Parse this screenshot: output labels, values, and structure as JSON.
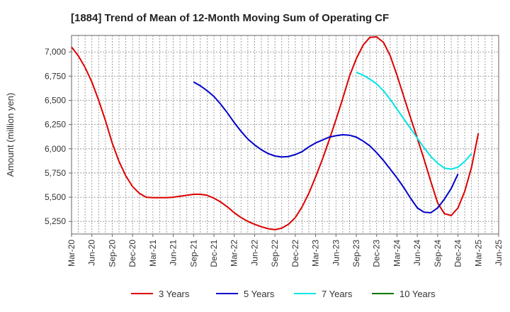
{
  "chart_data": {
    "type": "line",
    "title": "[1884]  Trend of Mean of 12-Month Moving Sum of Operating CF",
    "xlabel": "",
    "ylabel": "Amount (million yen)",
    "ylim": [
      5120,
      7170
    ],
    "yticks": [
      5250,
      5500,
      5750,
      6000,
      6250,
      6500,
      6750,
      7000
    ],
    "ytick_labels": [
      "5,250",
      "5,500",
      "5,750",
      "6,000",
      "6,250",
      "6,500",
      "6,750",
      "7,000"
    ],
    "x_range_months": [
      0,
      63
    ],
    "xtick_months": [
      0,
      3,
      6,
      9,
      12,
      15,
      18,
      21,
      24,
      27,
      30,
      33,
      36,
      39,
      42,
      45,
      48,
      51,
      54,
      57,
      60,
      63
    ],
    "xtick_labels": [
      "Mar-20",
      "Jun-20",
      "Sep-20",
      "Dec-20",
      "Mar-21",
      "Jun-21",
      "Sep-21",
      "Dec-21",
      "Mar-22",
      "Jun-22",
      "Sep-22",
      "Dec-22",
      "Mar-23",
      "Jun-23",
      "Sep-23",
      "Dec-23",
      "Mar-24",
      "Jun-24",
      "Sep-24",
      "Dec-24",
      "Mar-25",
      "Jun-25"
    ],
    "grid": true,
    "legend_position": "bottom",
    "series": [
      {
        "name": "3 Years",
        "color": "#dd0000",
        "start_month": 0,
        "values": [
          7050,
          6960,
          6840,
          6690,
          6500,
          6290,
          6060,
          5870,
          5720,
          5610,
          5540,
          5500,
          5495,
          5495,
          5495,
          5500,
          5510,
          5520,
          5530,
          5530,
          5520,
          5490,
          5450,
          5400,
          5340,
          5290,
          5250,
          5220,
          5195,
          5175,
          5165,
          5180,
          5220,
          5290,
          5400,
          5540,
          5710,
          5890,
          6090,
          6300,
          6520,
          6750,
          6930,
          7070,
          7150,
          7155,
          7100,
          6960,
          6760,
          6540,
          6320,
          6110,
          5890,
          5660,
          5440,
          5330,
          5310,
          5390,
          5560,
          5810,
          6160
        ]
      },
      {
        "name": "5 Years",
        "color": "#0000cc",
        "start_month": 18,
        "values": [
          6690,
          6650,
          6600,
          6540,
          6460,
          6370,
          6270,
          6180,
          6100,
          6040,
          5990,
          5950,
          5925,
          5915,
          5920,
          5940,
          5970,
          6020,
          6060,
          6090,
          6120,
          6135,
          6145,
          6140,
          6120,
          6080,
          6030,
          5960,
          5880,
          5790,
          5700,
          5600,
          5490,
          5390,
          5345,
          5340,
          5390,
          5480,
          5590,
          5740
        ]
      },
      {
        "name": "7 Years",
        "color": "#00e5e5",
        "start_month": 42,
        "values": [
          6790,
          6760,
          6720,
          6670,
          6600,
          6510,
          6410,
          6310,
          6210,
          6110,
          6010,
          5920,
          5850,
          5800,
          5790,
          5810,
          5870,
          5950
        ]
      },
      {
        "name": "10 Years",
        "color": "#007700",
        "start_month": 0,
        "values": []
      }
    ]
  }
}
